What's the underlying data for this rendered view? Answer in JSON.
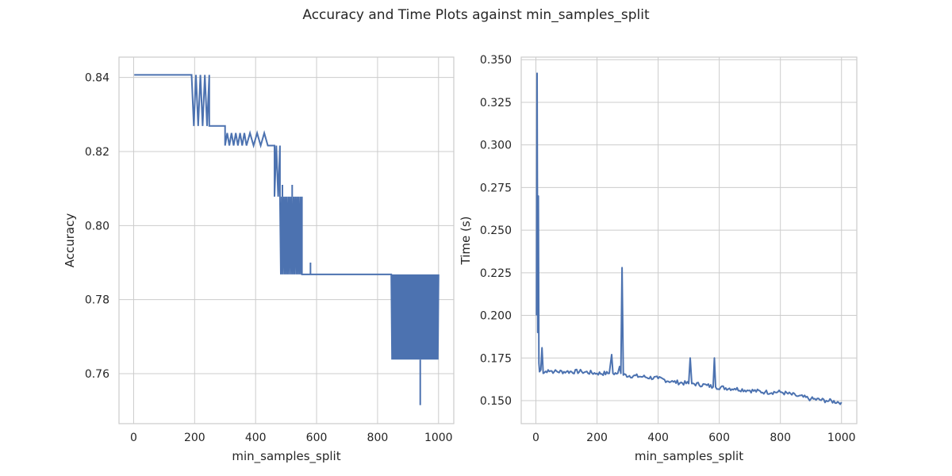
{
  "figure": {
    "title": "Accuracy and Time Plots against min_samples_split"
  },
  "chart_data": [
    {
      "type": "line",
      "xlabel": "min_samples_split",
      "ylabel": "Accuracy",
      "xlim": [
        -48,
        1050
      ],
      "ylim": [
        0.7465,
        0.8455
      ],
      "xticks": [
        0,
        200,
        400,
        600,
        800,
        1000
      ],
      "yticks": [
        0.76,
        0.78,
        0.8,
        0.82,
        0.84
      ],
      "ytick_labels": [
        "0.76",
        "0.78",
        "0.80",
        "0.82",
        "0.84"
      ],
      "grid": true,
      "legend": "none",
      "series_color": "#4c72b0",
      "series": [
        {
          "description_levels": [
            0.8407,
            0.8269,
            0.8216,
            0.8078,
            0.7868,
            0.7638
          ],
          "segments": [
            {
              "x0": 2,
              "x1": 190,
              "level": 0.8407
            },
            {
              "x0": 190,
              "x1": 248,
              "level": 0.8407,
              "osc": 0.8269,
              "flips": 8
            },
            {
              "x0": 248,
              "x1": 300,
              "level": 0.8269
            },
            {
              "x0": 300,
              "x1": 370,
              "level": 0.8216,
              "osc": 0.825,
              "flips": 10
            },
            {
              "x0": 370,
              "x1": 440,
              "level": 0.8216,
              "osc": 0.825,
              "flips": 6
            },
            {
              "x0": 440,
              "x1": 462,
              "level": 0.8216
            },
            {
              "x0": 462,
              "x1": 480,
              "level": 0.8078,
              "osc": 0.8216,
              "flips": 3
            },
            {
              "x0": 480,
              "x1": 552,
              "level": 0.8078,
              "osc": 0.7868,
              "flips": 26
            },
            {
              "x0": 552,
              "x1": 845,
              "level": 0.7868
            },
            {
              "x0": 845,
              "x1": 1000,
              "level": 0.7868,
              "osc": 0.7638,
              "flips": 60
            }
          ],
          "spikes": [
            {
              "x": 488,
              "y": 0.811
            },
            {
              "x": 520,
              "y": 0.811
            },
            {
              "x": 580,
              "y": 0.79
            },
            {
              "x": 940,
              "y": 0.7515
            }
          ]
        }
      ]
    },
    {
      "type": "line",
      "xlabel": "min_samples_split",
      "ylabel": "Time (s)",
      "xlim": [
        -48,
        1050
      ],
      "ylim": [
        0.1365,
        0.3515
      ],
      "xticks": [
        0,
        200,
        400,
        600,
        800,
        1000
      ],
      "yticks": [
        0.15,
        0.175,
        0.2,
        0.225,
        0.25,
        0.275,
        0.3,
        0.325,
        0.35
      ],
      "ytick_labels": [
        "0.150",
        "0.175",
        "0.200",
        "0.225",
        "0.250",
        "0.275",
        "0.300",
        "0.325",
        "0.350"
      ],
      "grid": true,
      "legend": "none",
      "series_color": "#4c72b0",
      "series": [
        {
          "points": [
            [
              2,
              0.2
            ],
            [
              4,
              0.342
            ],
            [
              6,
              0.19
            ],
            [
              8,
              0.27
            ],
            [
              10,
              0.172
            ],
            [
              12,
              0.167
            ],
            [
              16,
              0.168
            ],
            [
              20,
              0.181
            ],
            [
              24,
              0.166
            ],
            [
              40,
              0.168
            ],
            [
              60,
              0.167
            ],
            [
              100,
              0.167
            ],
            [
              150,
              0.167
            ],
            [
              200,
              0.166
            ],
            [
              240,
              0.166
            ],
            [
              248,
              0.177
            ],
            [
              252,
              0.166
            ],
            [
              268,
              0.166
            ],
            [
              274,
              0.17
            ],
            [
              278,
              0.166
            ],
            [
              282,
              0.228
            ],
            [
              286,
              0.165
            ],
            [
              350,
              0.164
            ],
            [
              400,
              0.163
            ],
            [
              450,
              0.161
            ],
            [
              500,
              0.16
            ],
            [
              505,
              0.175
            ],
            [
              510,
              0.16
            ],
            [
              560,
              0.159
            ],
            [
              580,
              0.158
            ],
            [
              584,
              0.175
            ],
            [
              588,
              0.158
            ],
            [
              650,
              0.157
            ],
            [
              700,
              0.156
            ],
            [
              750,
              0.155
            ],
            [
              800,
              0.155
            ],
            [
              850,
              0.153
            ],
            [
              900,
              0.151
            ],
            [
              950,
              0.15
            ],
            [
              1000,
              0.149
            ]
          ]
        }
      ]
    }
  ]
}
